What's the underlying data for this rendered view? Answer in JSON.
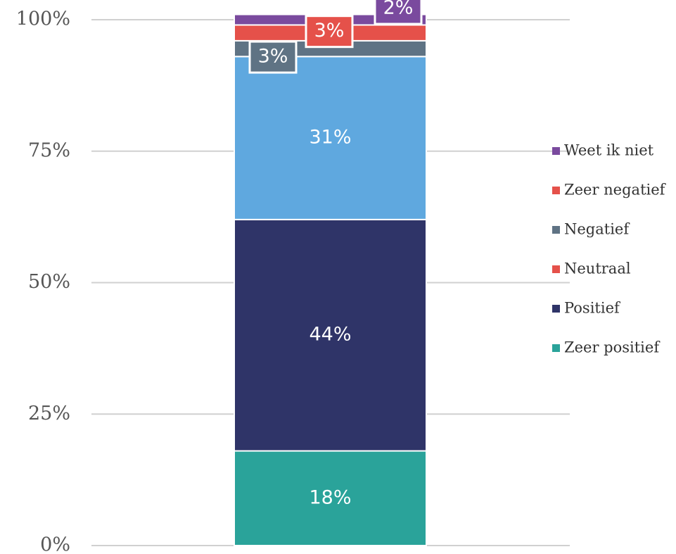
{
  "chart_data": {
    "type": "stacked_bar",
    "categories": [
      null
    ],
    "series": [
      {
        "name": "Zeer positief",
        "color": "#2aa39a",
        "legend_color": "#2aa39a",
        "values": [
          18
        ],
        "value_labels": [
          "18%"
        ]
      },
      {
        "name": "Positief",
        "color": "#2f3468",
        "legend_color": "#2f3468",
        "values": [
          44
        ],
        "value_labels": [
          "44%"
        ]
      },
      {
        "name": "Neutraal",
        "color": "#5fa8df",
        "legend_color": "#e5514a",
        "values": [
          31
        ],
        "value_labels": [
          "31%"
        ]
      },
      {
        "name": "Negatief",
        "color": "#5f7384",
        "legend_color": "#5f7384",
        "values": [
          3
        ],
        "value_labels": [
          "3%"
        ]
      },
      {
        "name": "Zeer negatief",
        "color": "#e5514a",
        "legend_color": "#e5514a",
        "values": [
          3
        ],
        "value_labels": [
          "3%"
        ]
      },
      {
        "name": "Weet ik niet",
        "color": "#7a4a9e",
        "legend_color": "#7a4a9e",
        "values": [
          2
        ],
        "value_labels": [
          "2%"
        ]
      }
    ],
    "ylim": [
      0,
      100
    ],
    "yticks": [
      {
        "value": 0,
        "label": "0%"
      },
      {
        "value": 25,
        "label": "25%"
      },
      {
        "value": 50,
        "label": "50%"
      },
      {
        "value": 75,
        "label": "75%"
      },
      {
        "value": 100,
        "label": "100%"
      }
    ],
    "grid": true
  }
}
